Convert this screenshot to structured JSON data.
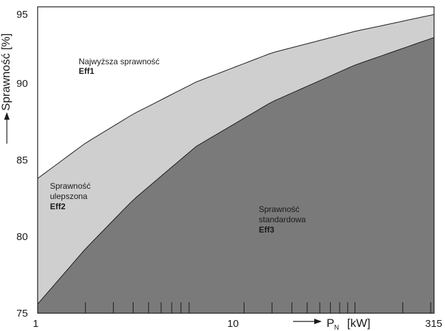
{
  "chart_data": {
    "type": "area",
    "x_scale": "log",
    "xlim": [
      1,
      315
    ],
    "ylim": [
      75,
      95
    ],
    "grid": false,
    "x_tick_labels": [
      "1",
      "10",
      "315"
    ],
    "x_minor_ticks": [
      2,
      3,
      4,
      5,
      6,
      7,
      8,
      9,
      20,
      30,
      40,
      50,
      60,
      70,
      80,
      90,
      100,
      200,
      300
    ],
    "y_ticks": [
      75,
      80,
      85,
      90,
      95
    ],
    "y_tick_labels": [
      "75",
      "80",
      "85",
      "90",
      "95"
    ],
    "ylabel": "Sprawność [%]",
    "xlabel": {
      "symbol": "P",
      "subscript": "N",
      "unit": "[kW]"
    },
    "series": [
      {
        "name": "Eff2",
        "x": [
          1,
          2,
          4,
          10,
          30,
          100,
          315
        ],
        "y": [
          83.8,
          86.1,
          88.0,
          90.1,
          92.0,
          93.4,
          94.5
        ]
      },
      {
        "name": "Eff3",
        "x": [
          1,
          2,
          4,
          10,
          30,
          100,
          315
        ],
        "y": [
          75.6,
          79.2,
          82.4,
          85.9,
          88.8,
          91.2,
          93.0
        ]
      }
    ],
    "regions": [
      {
        "lines": [
          "Najwyższa sprawność"
        ],
        "label": "Eff1",
        "fill": "#ffffff"
      },
      {
        "lines": [
          "Sprawność",
          "ulepszona"
        ],
        "label": "Eff2",
        "fill": "#cfcfcf"
      },
      {
        "lines": [
          "Sprawność",
          "standardowa"
        ],
        "label": "Eff3",
        "fill": "#7a7a7a"
      }
    ],
    "colors": {
      "frame": "#1a1a1a",
      "text": "#1a1a1a"
    }
  }
}
